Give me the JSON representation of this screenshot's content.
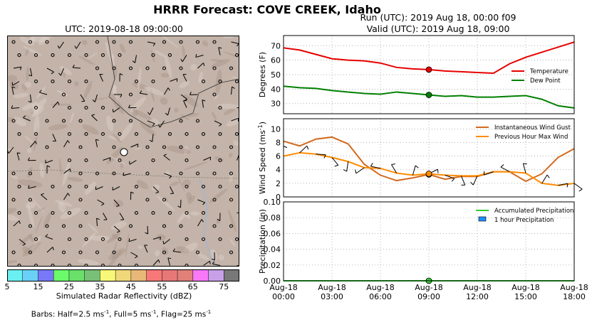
{
  "title": "HRRR Forecast: COVE CREEK, Idaho",
  "map": {
    "title": "UTC: 2019-08-18 09:00:00",
    "colorbar_label": "Simulated Radar Reflectivity (dBZ)",
    "colorbar_ticks": [
      "5",
      "15",
      "25",
      "35",
      "45",
      "55",
      "65",
      "75"
    ],
    "colorbar_colors": [
      "#6af0f0",
      "#6ad0f8",
      "#7878f8",
      "#6afa6a",
      "#6ae06a",
      "#78c078",
      "#f8f878",
      "#f0d878",
      "#e8b878",
      "#f87878",
      "#e87878",
      "#e08078",
      "#f878f8",
      "#c8a0e8",
      "#787878"
    ],
    "terrain_color": "#c3b3a8",
    "barb_note_prefix": "Barbs: Half=2.5 ms",
    "barb_note_mid1": ", Full=5 ms",
    "barb_note_mid2": ", Flag=25 ms",
    "barb_note_exp": "-1"
  },
  "run_text": "Run (UTC): 2019 Aug 18, 00:00 f09",
  "valid_text": "Valid (UTC): 2019 Aug 18, 09:00",
  "chart_data": [
    {
      "type": "line",
      "ylabel": "Degrees (F)",
      "xlim": [
        0,
        18
      ],
      "ylim": [
        23,
        77
      ],
      "yticks": [
        30,
        40,
        50,
        60,
        70
      ],
      "marker_hour": 9,
      "legend_position": "right",
      "series": [
        {
          "name": "Temperature",
          "color": "#e60000",
          "x": [
            0,
            1,
            2,
            3,
            4,
            5,
            6,
            7,
            8,
            9,
            10,
            11,
            12,
            13,
            14,
            15,
            16,
            17,
            18
          ],
          "y": [
            68.5,
            67,
            64,
            61,
            60,
            59.5,
            58,
            55,
            54,
            53.5,
            52.5,
            52,
            51.5,
            51,
            57.5,
            62,
            65.5,
            69,
            72.5
          ]
        },
        {
          "name": "Dew Point",
          "color": "#008000",
          "x": [
            0,
            1,
            2,
            3,
            4,
            5,
            6,
            7,
            8,
            9,
            10,
            11,
            12,
            13,
            14,
            15,
            16,
            17,
            18
          ],
          "y": [
            42,
            41,
            40.5,
            39,
            38,
            37,
            36.5,
            38,
            37,
            36,
            35,
            35.5,
            34.5,
            34.5,
            35,
            35.5,
            33,
            28.5,
            27
          ]
        }
      ]
    },
    {
      "type": "line",
      "ylabel": "Wind Speed (ms",
      "ylabel_exp": "-1",
      "ylabel_suffix": ")",
      "xlim": [
        0,
        18
      ],
      "ylim": [
        0,
        11.5
      ],
      "yticks": [
        0,
        2,
        4,
        6,
        8,
        10
      ],
      "marker_hour": 9,
      "legend_position": "top-right",
      "series": [
        {
          "name": "Instantaneous Wind Gust",
          "color": "#d2691e",
          "x": [
            0,
            1,
            2,
            3,
            4,
            5,
            6,
            7,
            8,
            9,
            10,
            11,
            12,
            13,
            14,
            15,
            16,
            17,
            18
          ],
          "y": [
            8.2,
            7.5,
            8.5,
            8.8,
            7.8,
            4.8,
            3.2,
            2.4,
            2.8,
            3.3,
            2.6,
            3,
            3,
            3.7,
            3.7,
            2.3,
            3.4,
            5.8,
            7.1
          ]
        },
        {
          "name": "Previous Hour Max Wind",
          "color": "#ff8c00",
          "x": [
            0,
            1,
            2,
            3,
            4,
            5,
            6,
            7,
            8,
            9,
            10,
            11,
            12,
            13,
            14,
            15,
            16,
            17,
            18
          ],
          "y": [
            6,
            6.5,
            6.3,
            5.8,
            5.2,
            4.3,
            4.2,
            3.5,
            3.2,
            3.4,
            3.2,
            3.1,
            3.1,
            3.7,
            3.7,
            3.5,
            2,
            1.7,
            2
          ]
        }
      ]
    },
    {
      "type": "line",
      "ylabel": "Precipitation (in)",
      "xlim": [
        0,
        18
      ],
      "ylim": [
        0,
        0.1
      ],
      "yticks": [
        0.0,
        0.02,
        0.04,
        0.06,
        0.08,
        0.1
      ],
      "ytick_labels": [
        "0.00",
        "0.02",
        "0.04",
        "0.06",
        "0.08",
        "0.10"
      ],
      "marker_hour": 9,
      "legend_position": "top-right",
      "series": [
        {
          "name": "Accumulated Precipitation",
          "color": "#32cd32",
          "x": [
            0,
            1,
            2,
            3,
            4,
            5,
            6,
            7,
            8,
            9,
            10,
            11,
            12,
            13,
            14,
            15,
            16,
            17,
            18
          ],
          "y": [
            0,
            0,
            0,
            0,
            0,
            0,
            0,
            0,
            0,
            0,
            0,
            0,
            0,
            0,
            0,
            0,
            0,
            0,
            0
          ]
        },
        {
          "name": "1 hour Precipitation",
          "color": "#1e90ff",
          "kind": "bar",
          "x": [],
          "y": []
        }
      ],
      "xtick_labels": [
        {
          "hour": 0,
          "line1": "Aug-18",
          "line2": "00:00"
        },
        {
          "hour": 3,
          "line1": "Aug-18",
          "line2": "03:00"
        },
        {
          "hour": 6,
          "line1": "Aug-18",
          "line2": "06:00"
        },
        {
          "hour": 9,
          "line1": "Aug-18",
          "line2": "09:00"
        },
        {
          "hour": 12,
          "line1": "Aug-18",
          "line2": "12:00"
        },
        {
          "hour": 15,
          "line1": "Aug-18",
          "line2": "15:00"
        },
        {
          "hour": 18,
          "line1": "Aug-18",
          "line2": "18:00"
        }
      ]
    }
  ]
}
